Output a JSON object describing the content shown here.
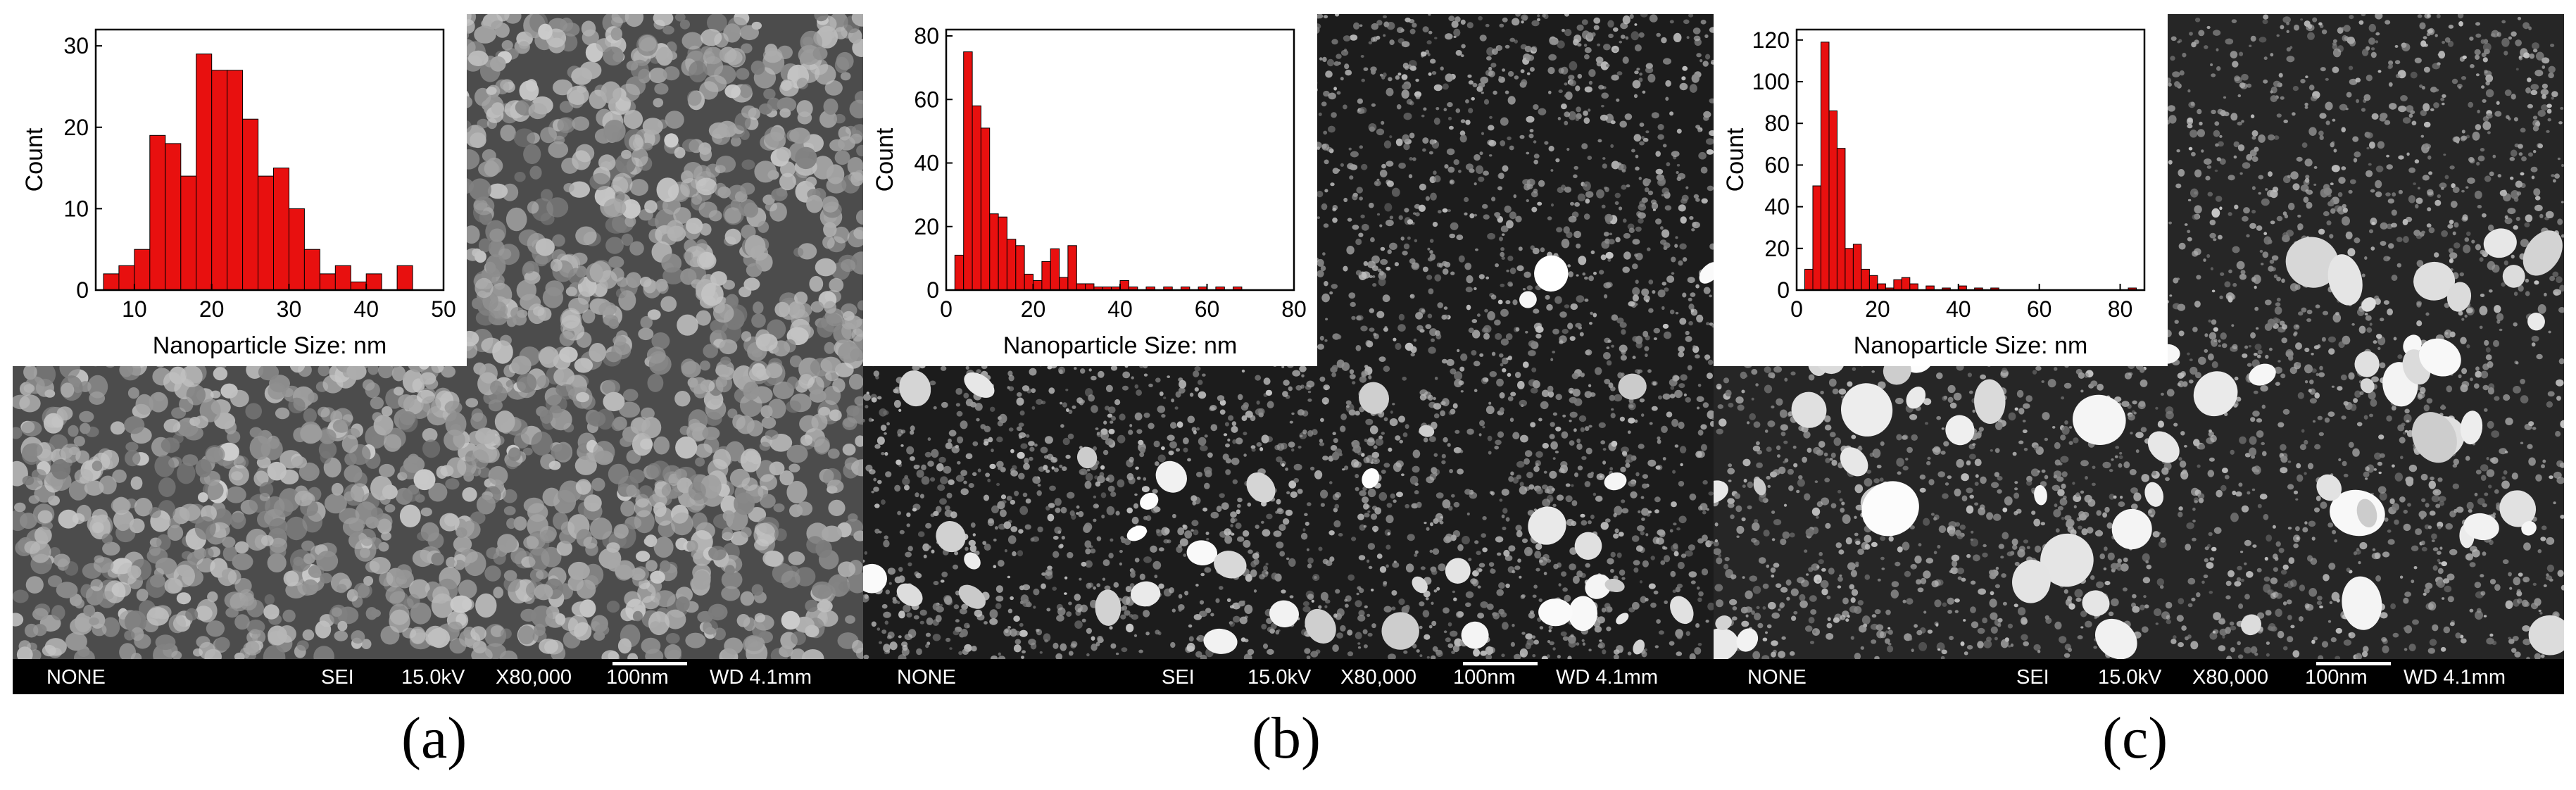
{
  "panels": [
    {
      "id": "a",
      "caption": "(a)",
      "sem_bar": {
        "label": "NONE",
        "detector": "SEI",
        "voltage": "15.0kV",
        "magnification": "X80,000",
        "scale": "100nm",
        "wd": "WD 4.1mm"
      },
      "background": "#4c4c4c",
      "particle_density": "dense-uniform",
      "chart_data": {
        "type": "bar",
        "xlabel": "Nanoparticle Size: nm",
        "ylabel": "Count",
        "xlim": [
          5,
          50
        ],
        "ylim": [
          0,
          32
        ],
        "xticks": [
          10,
          20,
          30,
          40,
          50
        ],
        "yticks": [
          0,
          10,
          20,
          30
        ],
        "bin_width": 2,
        "bar_color": "#e8100f",
        "x": [
          7,
          9,
          11,
          13,
          15,
          17,
          19,
          21,
          23,
          25,
          27,
          29,
          31,
          33,
          35,
          37,
          39,
          41,
          43,
          45
        ],
        "values": [
          2,
          3,
          5,
          19,
          18,
          14,
          29,
          27,
          27,
          21,
          14,
          15,
          10,
          5,
          2,
          3,
          1,
          2,
          0,
          3
        ]
      }
    },
    {
      "id": "b",
      "caption": "(b)",
      "sem_bar": {
        "label": "NONE",
        "detector": "SEI",
        "voltage": "15.0kV",
        "magnification": "X80,000",
        "scale": "100nm",
        "wd": "WD 4.1mm"
      },
      "background": "#1c1c1c",
      "particle_density": "fine-with-large",
      "chart_data": {
        "type": "bar",
        "xlabel": "Nanoparticle Size: nm",
        "ylabel": "Count",
        "xlim": [
          0,
          80
        ],
        "ylim": [
          0,
          82
        ],
        "xticks": [
          0,
          20,
          40,
          60,
          80
        ],
        "yticks": [
          0,
          20,
          40,
          60,
          80
        ],
        "bin_width": 2,
        "bar_color": "#e8100f",
        "x": [
          3,
          5,
          7,
          9,
          11,
          13,
          15,
          17,
          19,
          21,
          23,
          25,
          27,
          29,
          31,
          33,
          35,
          37,
          39,
          41,
          43,
          47,
          51,
          55,
          59,
          63,
          67
        ],
        "values": [
          11,
          75,
          58,
          51,
          24,
          23,
          16,
          14,
          5,
          3,
          9,
          13,
          4,
          14,
          2,
          2,
          1,
          1,
          1,
          3,
          1,
          1,
          1,
          1,
          1,
          1,
          1
        ]
      }
    },
    {
      "id": "c",
      "caption": "(c)",
      "sem_bar": {
        "label": "NONE",
        "detector": "SEI",
        "voltage": "15.0kV",
        "magnification": "X80,000",
        "scale": "100nm",
        "wd": "WD 4.1mm"
      },
      "background": "#262626",
      "particle_density": "fine-with-clusters",
      "chart_data": {
        "type": "bar",
        "xlabel": "Nanoparticle Size: nm",
        "ylabel": "Count",
        "xlim": [
          0,
          86
        ],
        "ylim": [
          0,
          125
        ],
        "xticks": [
          0,
          20,
          40,
          60,
          80
        ],
        "yticks": [
          0,
          20,
          40,
          60,
          80,
          100,
          120
        ],
        "bin_width": 2,
        "bar_color": "#e8100f",
        "x": [
          3,
          5,
          7,
          9,
          11,
          13,
          15,
          17,
          19,
          21,
          23,
          25,
          27,
          29,
          33,
          37,
          41,
          45,
          49,
          83
        ],
        "values": [
          10,
          50,
          119,
          86,
          68,
          20,
          22,
          10,
          7,
          3,
          1,
          5,
          6,
          3,
          2,
          1,
          2,
          1,
          1,
          1
        ]
      }
    }
  ]
}
